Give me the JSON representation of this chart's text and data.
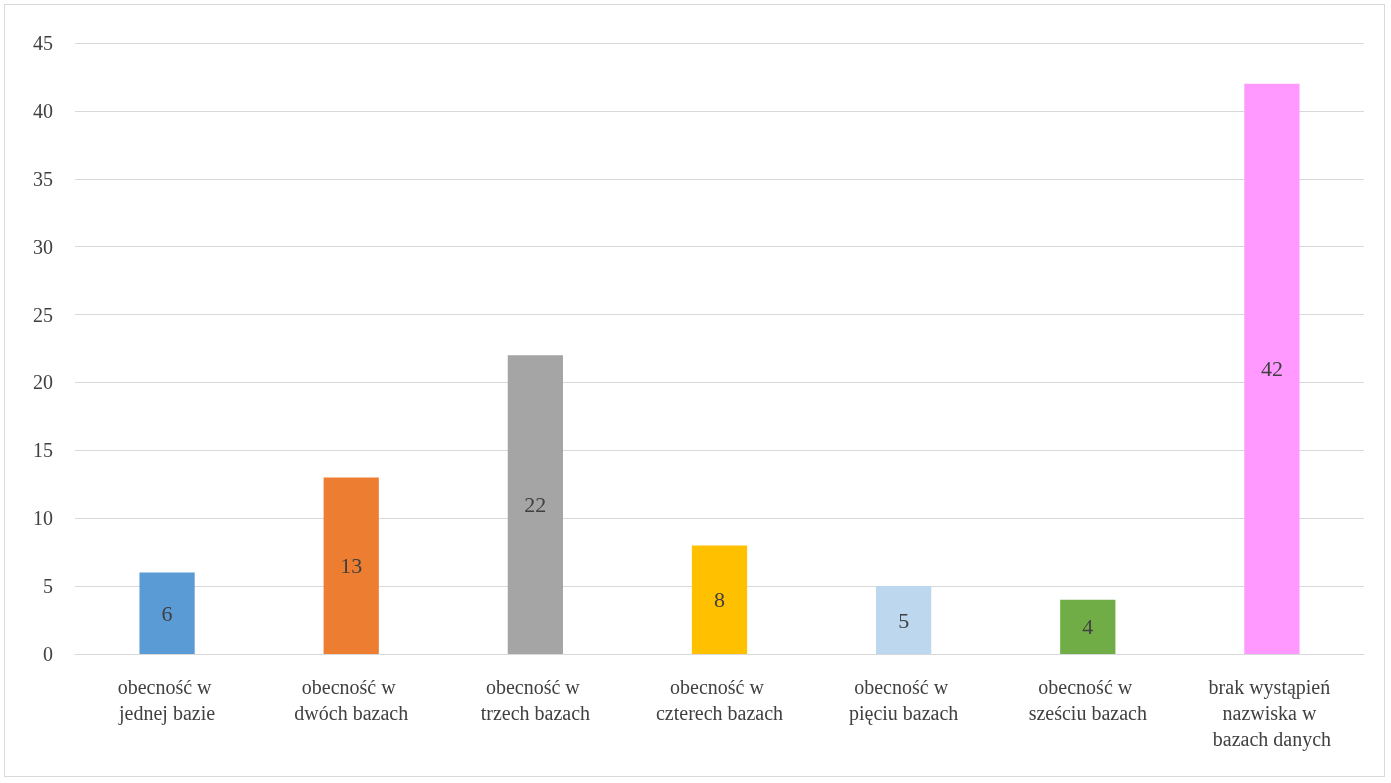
{
  "chart_data": {
    "type": "bar",
    "categories": [
      "obecność w jednej bazie",
      "obecność w dwóch bazach",
      "obecność w trzech bazach",
      "obecność w czterech bazach",
      "obecność w pięciu bazach",
      "obecność w sześciu bazach",
      "brak wystąpień nazwiska w bazach danych"
    ],
    "values": [
      6,
      13,
      22,
      8,
      5,
      4,
      42
    ],
    "colors": [
      "#5b9bd5",
      "#ed7d31",
      "#a5a5a5",
      "#ffc000",
      "#bdd7ee",
      "#70ad47",
      "#ff99ff"
    ],
    "ylim": [
      0,
      45
    ],
    "yticks": [
      0,
      5,
      10,
      15,
      20,
      25,
      30,
      35,
      40,
      45
    ],
    "grid": "y",
    "data_labels": true
  }
}
